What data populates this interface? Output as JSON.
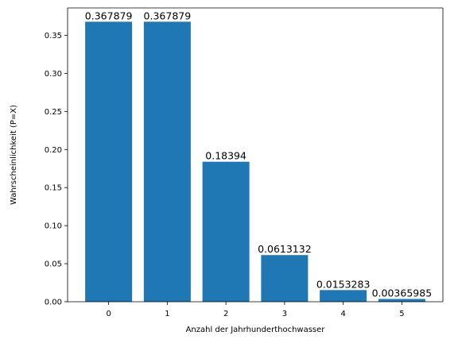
{
  "chart_data": {
    "type": "bar",
    "categories": [
      "0",
      "1",
      "2",
      "3",
      "4",
      "5"
    ],
    "values": [
      0.367879,
      0.367879,
      0.18394,
      0.0613132,
      0.0153283,
      0.00365985
    ],
    "data_labels": [
      "0.367879",
      "0.367879",
      "0.18394",
      "0.0613132",
      "0.0153283",
      "0.00365985"
    ],
    "title": "",
    "xlabel": "Anzahl der Jahrhunderthochwasser",
    "ylabel": "Wahrscheinlichkeit (P=X)",
    "ylim": [
      0,
      0.386
    ],
    "yticks": [
      0.0,
      0.05,
      0.1,
      0.15,
      0.2,
      0.25,
      0.3,
      0.35
    ],
    "ytick_labels": [
      "0.00",
      "0.05",
      "0.10",
      "0.15",
      "0.20",
      "0.25",
      "0.30",
      "0.35"
    ],
    "bar_color": "#1f77b4",
    "grid": false,
    "legend": "none"
  }
}
